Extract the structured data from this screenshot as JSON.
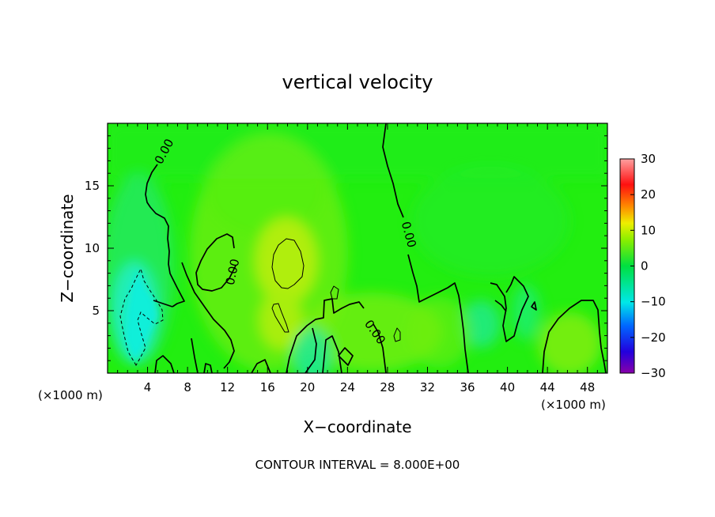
{
  "chart_data": {
    "type": "heatmap",
    "title": "vertical velocity",
    "xlabel": "X−coordinate",
    "ylabel": "Z−coordinate",
    "x_unit_left": "(×1000 m)",
    "x_unit_right": "(×1000 m)",
    "footer": "CONTOUR INTERVAL = 8.000E+00",
    "xlim": [
      0,
      50
    ],
    "ylim": [
      0,
      20
    ],
    "xticks": [
      4,
      8,
      12,
      16,
      20,
      24,
      28,
      32,
      36,
      40,
      44,
      48
    ],
    "yticks": [
      5,
      10,
      15
    ],
    "colorbar": {
      "ticks": [
        30,
        20,
        10,
        0,
        -10,
        -20,
        -30
      ],
      "tick_labels": [
        "30",
        "20",
        "10",
        "0",
        "−10",
        "−20",
        "−30"
      ],
      "range": [
        -30,
        30
      ]
    },
    "contour_labels": [
      "0.00",
      "0.00",
      "0.00",
      "0.00"
    ],
    "features": [
      {
        "kind": "downdraft",
        "x": 3,
        "z": 5,
        "value": -9
      },
      {
        "kind": "updraft",
        "x": 18,
        "z": 9,
        "value": 8
      },
      {
        "kind": "updraft",
        "x": 17.5,
        "z": 4,
        "value": 6
      },
      {
        "kind": "updraft",
        "x": 46,
        "z": 3,
        "value": 5
      }
    ]
  }
}
